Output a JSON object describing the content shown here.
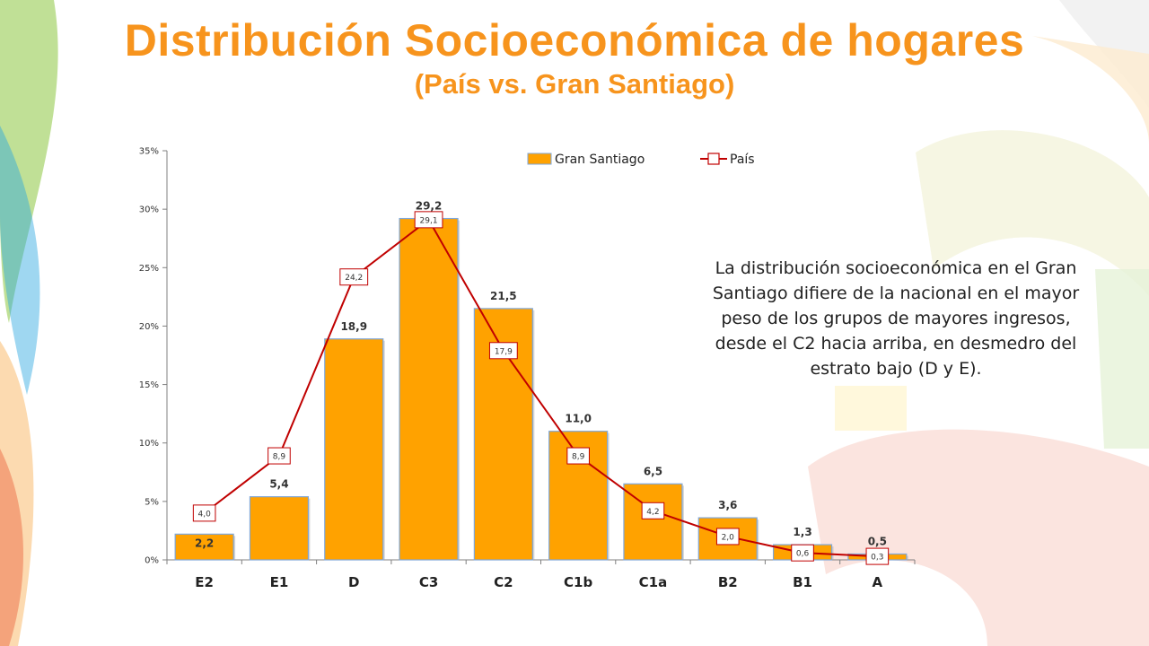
{
  "title": "Distribución Socioeconómica de hogares",
  "subtitle": "(País vs. Gran Santiago)",
  "note": "La distribución socioeconómica en el Gran Santiago difiere de la nacional en el mayor peso de los grupos de mayores ingresos, desde el C2 hacia arriba, en desmedro del estrato bajo (D y E).",
  "colors": {
    "title": "#F7941D",
    "bar": "#FFA200",
    "bar_border": "#7FA7D9",
    "line": "#C00000"
  },
  "chart_data": {
    "type": "bar",
    "categories": [
      "E2",
      "E1",
      "D",
      "C3",
      "C2",
      "C1b",
      "C1a",
      "B2",
      "B1",
      "A"
    ],
    "series": [
      {
        "name": "Gran Santiago",
        "type": "bar",
        "values": [
          2.2,
          5.4,
          18.9,
          29.2,
          21.5,
          11.0,
          6.5,
          3.6,
          1.3,
          0.5
        ],
        "labels": [
          "2,2",
          "5,4",
          "18,9",
          "29,2",
          "21,5",
          "11,0",
          "6,5",
          "3,6",
          "1,3",
          "0,5"
        ]
      },
      {
        "name": "País",
        "type": "line",
        "values": [
          4.0,
          8.9,
          24.2,
          29.1,
          17.9,
          8.9,
          4.2,
          2.0,
          0.6,
          0.3
        ],
        "labels": [
          "4,0",
          "8,9",
          "24,2",
          "29,1",
          "17,9",
          "8,9",
          "4,2",
          "2,0",
          "0,6",
          "0,3"
        ]
      }
    ],
    "yticks": [
      {
        "value": 0,
        "label": "0%"
      },
      {
        "value": 5,
        "label": "5%"
      },
      {
        "value": 10,
        "label": "10%"
      },
      {
        "value": 15,
        "label": "15%"
      },
      {
        "value": 20,
        "label": "20%"
      },
      {
        "value": 25,
        "label": "25%"
      },
      {
        "value": 30,
        "label": "30%"
      },
      {
        "value": 35,
        "label": "35%"
      }
    ],
    "ylim": [
      0,
      35
    ],
    "grid": false,
    "legend": "top"
  }
}
